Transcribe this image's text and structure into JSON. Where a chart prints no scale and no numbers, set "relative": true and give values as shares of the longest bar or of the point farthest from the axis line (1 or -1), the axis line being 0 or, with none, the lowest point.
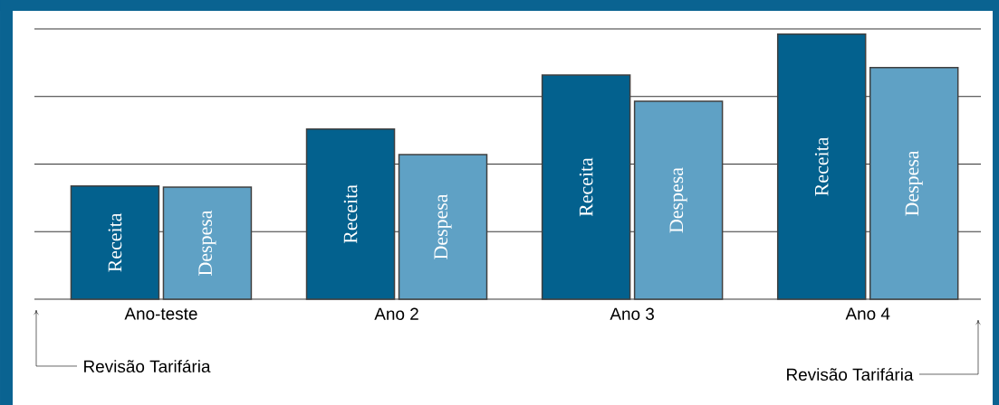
{
  "chart_data": {
    "type": "bar",
    "relative": true,
    "categories": [
      "Ano-teste",
      "Ano 2",
      "Ano 3",
      "Ano 4"
    ],
    "series": [
      {
        "name": "Receita",
        "color": "#03618e",
        "values": [
          0.427,
          0.642,
          0.846,
          1
        ]
      },
      {
        "name": "Despesa",
        "color": "#5fa1c5",
        "values": [
          0.423,
          0.546,
          0.747,
          0.874
        ]
      }
    ],
    "grid": "y",
    "annotations": [
      "Revisão Tarifária",
      "Revisão Tarifária"
    ]
  }
}
